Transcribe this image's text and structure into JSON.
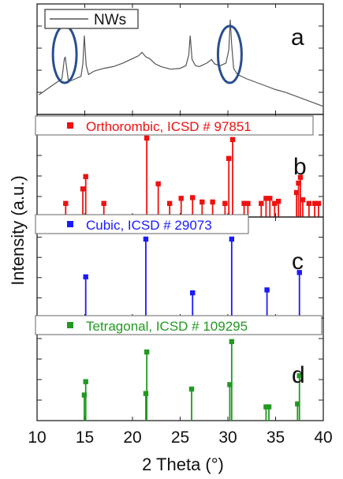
{
  "chart_data": {
    "type": "stacked-panels",
    "xlabel": "2 Theta (°)",
    "ylabel": "Intensity (a.u.)",
    "xlim": [
      10,
      40
    ],
    "xticks": [
      "10",
      "15",
      "20",
      "25",
      "30",
      "35",
      "40"
    ],
    "panels": [
      {
        "letter": "a",
        "type": "line",
        "series_name": "NWs",
        "color": "#555555",
        "x": [
          10.2,
          11.5,
          12.6,
          12.85,
          12.95,
          13.3,
          14.0,
          14.6,
          14.8,
          14.95,
          15.15,
          15.4,
          16,
          17,
          18,
          19,
          20,
          20.6,
          21.0,
          21.4,
          21.8,
          22.4,
          23,
          24,
          25,
          25.6,
          25.9,
          26.05,
          26.25,
          26.6,
          27,
          27.8,
          28.3,
          28.6,
          29.2,
          29.8,
          30.1,
          30.25,
          30.4,
          30.6,
          31.0,
          32,
          33,
          34,
          35,
          36,
          37,
          38,
          39,
          40
        ],
        "y": [
          15,
          25,
          33,
          55,
          58,
          30,
          33,
          36,
          50,
          82,
          48,
          38,
          42,
          45,
          47,
          51,
          56,
          59,
          63,
          58,
          56,
          50,
          47,
          44,
          45,
          48,
          60,
          82,
          55,
          48,
          47,
          51,
          55,
          50,
          48,
          51,
          66,
          100,
          72,
          45,
          38,
          33,
          29,
          25,
          21,
          18,
          14,
          10,
          6,
          2
        ],
        "annotations": [
          {
            "shape": "ellipse",
            "x_center": 12.9
          },
          {
            "shape": "ellipse",
            "x_center": 30.2
          }
        ]
      },
      {
        "letter": "b",
        "type": "stick",
        "label": "Orthorombic, ICSD # 97851",
        "color": "#ee1111",
        "x": [
          13.0,
          14.8,
          15.1,
          17.0,
          21.5,
          22.7,
          23.9,
          25.1,
          26.3,
          27.3,
          28.4,
          29.7,
          30.1,
          30.5,
          31.7,
          32.1,
          33.5,
          34.0,
          34.4,
          34.9,
          35.3,
          37.2,
          37.4,
          37.6,
          37.85,
          38.5,
          39.1,
          39.5
        ],
        "y": [
          10,
          30,
          47,
          10,
          100,
          37,
          10,
          17,
          18,
          12,
          12,
          10,
          72,
          98,
          10,
          10,
          10,
          17,
          17,
          10,
          13,
          25,
          38,
          46,
          15,
          10,
          10,
          10
        ]
      },
      {
        "letter": "c",
        "type": "stick",
        "label": "Cubic, ICSD # 29073",
        "color": "#1a1aff",
        "x": [
          15.1,
          21.4,
          26.3,
          30.4,
          34.1,
          37.5
        ],
        "y": [
          48,
          100,
          26,
          100,
          30,
          54
        ]
      },
      {
        "letter": "d",
        "type": "stick",
        "label": "Tetragonal, ICSD # 109295",
        "color": "#229922",
        "x": [
          14.95,
          15.1,
          21.4,
          21.5,
          26.2,
          30.2,
          30.4,
          34.0,
          34.3,
          37.3,
          37.5
        ],
        "y": [
          26,
          44,
          28,
          84,
          34,
          40,
          98,
          10,
          10,
          14,
          52
        ]
      }
    ]
  }
}
